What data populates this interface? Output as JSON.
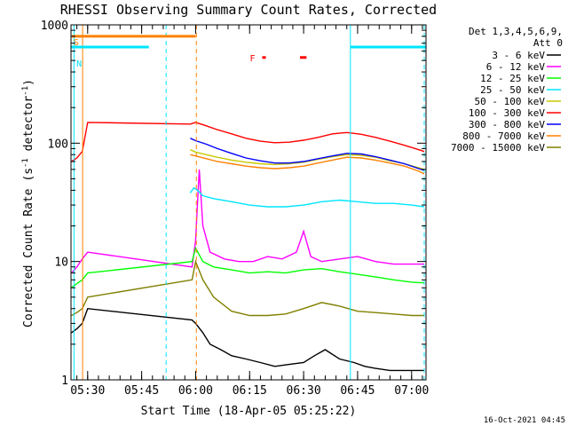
{
  "chart_data": {
    "type": "line",
    "title": "RHESSI Observing Summary Count Rates, Corrected",
    "xlabel": "Start Time (18-Apr-05 05:25:22)",
    "ylabel_main": "Corrected Count Rate (s",
    "ylabel_sup1": "-1",
    "ylabel_mid": " detector",
    "ylabel_sup2": "-1",
    "ylabel_end": ")",
    "y_scale": "log",
    "ylim": [
      1,
      1000
    ],
    "xlim_minutes": [
      325.37,
      424.0
    ],
    "x_ticks": [
      {
        "label": "05:30",
        "minutes": 330
      },
      {
        "label": "05:45",
        "minutes": 345
      },
      {
        "label": "06:00",
        "minutes": 360
      },
      {
        "label": "06:15",
        "minutes": 375
      },
      {
        "label": "06:30",
        "minutes": 390
      },
      {
        "label": "06:45",
        "minutes": 405
      },
      {
        "label": "07:00",
        "minutes": 420
      }
    ],
    "y_ticks": [
      {
        "label": "1",
        "value": 1
      },
      {
        "label": "10",
        "value": 10
      },
      {
        "label": "100",
        "value": 100
      },
      {
        "label": "1000",
        "value": 1000
      }
    ],
    "legend": {
      "title1": "Det 1,3,4,5,6,9,",
      "title2": "Att 0",
      "placement": "outside-right"
    },
    "series": [
      {
        "name": "3 - 6 keV",
        "color": "#000000",
        "x": [
          325.5,
          327,
          328.5,
          330,
          359,
          360,
          362,
          364,
          367,
          370,
          374,
          378,
          382,
          386,
          390,
          393,
          396,
          400,
          404,
          407,
          410,
          414,
          418,
          422,
          423.5
        ],
        "y": [
          2.5,
          2.7,
          3,
          4,
          3.2,
          3,
          2.5,
          2,
          1.8,
          1.6,
          1.5,
          1.4,
          1.3,
          1.35,
          1.4,
          1.6,
          1.8,
          1.5,
          1.4,
          1.3,
          1.25,
          1.2,
          1.2,
          1.2,
          1.2
        ]
      },
      {
        "name": "6 - 12 keV",
        "color": "#ff00ff",
        "x": [
          325.5,
          327,
          328.5,
          330,
          359,
          360,
          361,
          362,
          364,
          368,
          372,
          376,
          380,
          384,
          388,
          390,
          392,
          395,
          400,
          405,
          410,
          415,
          420,
          423.5
        ],
        "y": [
          8,
          9,
          10.5,
          12,
          9,
          15,
          60,
          20,
          12,
          10.5,
          10,
          10,
          11,
          10.5,
          12,
          18,
          11,
          10,
          10.5,
          11,
          10,
          9.5,
          9.5,
          9.5
        ]
      },
      {
        "name": "12 - 25 keV",
        "color": "#00ff00",
        "x": [
          325.5,
          327,
          328.5,
          330,
          359,
          360,
          362,
          365,
          370,
          375,
          380,
          385,
          390,
          395,
          400,
          405,
          410,
          415,
          420,
          423.5
        ],
        "y": [
          6,
          6.5,
          7,
          8,
          10,
          13,
          10,
          9,
          8.5,
          8,
          8.2,
          8,
          8.5,
          8.7,
          8.2,
          7.8,
          7.4,
          7,
          6.7,
          6.6
        ]
      },
      {
        "name": "25 - 50 keV",
        "color": "#00e5ff",
        "x": [
          358.5,
          359.5,
          360.5,
          362,
          365,
          370,
          375,
          380,
          385,
          390,
          395,
          400,
          405,
          410,
          415,
          420,
          423.5
        ],
        "y": [
          38,
          42,
          40,
          36,
          34,
          32,
          30,
          29,
          29,
          30,
          32,
          33,
          32,
          31,
          31,
          30,
          29
        ]
      },
      {
        "name": "50 - 100 keV",
        "color": "#c8c800",
        "x": [
          358.5,
          360,
          363,
          366,
          370,
          374,
          378,
          382,
          386,
          390,
          394,
          398,
          402,
          406,
          410,
          414,
          418,
          422,
          423.5
        ],
        "y": [
          88,
          84,
          80,
          76,
          72,
          69,
          67,
          66,
          67,
          69,
          73,
          77,
          80,
          79,
          76,
          71,
          67,
          62,
          60
        ]
      },
      {
        "name": "100 - 300 keV",
        "color": "#ff0000",
        "x": [
          325.5,
          327,
          328.5,
          330,
          358.5,
          360,
          363,
          366,
          370,
          374,
          378,
          382,
          386,
          390,
          394,
          398,
          402,
          406,
          410,
          414,
          418,
          422,
          423.5
        ],
        "y": [
          70,
          75,
          85,
          150,
          145,
          150,
          140,
          130,
          120,
          110,
          104,
          101,
          102,
          106,
          112,
          120,
          123,
          119,
          112,
          104,
          96,
          88,
          85
        ]
      },
      {
        "name": "300 - 800 keV",
        "color": "#0000ff",
        "x": [
          358.5,
          360,
          363,
          366,
          370,
          374,
          378,
          382,
          386,
          390,
          394,
          398,
          402,
          406,
          410,
          414,
          418,
          422,
          423.5
        ],
        "y": [
          110,
          105,
          98,
          90,
          82,
          75,
          71,
          68,
          68,
          70,
          74,
          78,
          82,
          81,
          77,
          72,
          67,
          61,
          59
        ]
      },
      {
        "name": "800 - 7000 keV",
        "color": "#ff8000",
        "x": [
          358.5,
          360,
          363,
          366,
          370,
          374,
          378,
          382,
          386,
          390,
          394,
          398,
          402,
          406,
          410,
          414,
          418,
          422,
          423.5
        ],
        "y": [
          80,
          78,
          74,
          70,
          67,
          64,
          62,
          61,
          62,
          64,
          68,
          72,
          76,
          75,
          72,
          68,
          64,
          58,
          55
        ]
      },
      {
        "name": "7000 - 15000 keV",
        "color": "#808000",
        "x": [
          325.5,
          327,
          328.5,
          330,
          359,
          360,
          362,
          365,
          370,
          375,
          380,
          385,
          390,
          395,
          400,
          405,
          410,
          415,
          420,
          423.5
        ],
        "y": [
          3.5,
          3.7,
          4,
          5,
          7,
          10,
          7,
          5,
          3.8,
          3.5,
          3.5,
          3.6,
          4,
          4.5,
          4.2,
          3.8,
          3.7,
          3.6,
          3.5,
          3.5
        ]
      }
    ],
    "annotations": {
      "segments": [
        {
          "label": "S",
          "color": "#ff8000",
          "x_start": 325.6,
          "x_end": 360.0,
          "y": 800
        },
        {
          "label": "N",
          "color": "#00e5ff",
          "x_start": 325.4,
          "x_end": 347.0,
          "y": 650
        },
        {
          "label": "N",
          "color": "#00e5ff",
          "x_start": 403.0,
          "x_end": 424.0,
          "y": 650
        }
      ],
      "flare_label": "F",
      "flare_color": "#ff0000",
      "flare_marks": [
        {
          "x_start": 378.5,
          "x_end": 379.5
        },
        {
          "x_start": 389.0,
          "x_end": 390.8
        }
      ],
      "flare_y": 530,
      "vertical_lines": [
        {
          "x": 326.2,
          "color": "#00e5ff",
          "dashed": false
        },
        {
          "x": 328.6,
          "color": "#ff8000",
          "dashed": false
        },
        {
          "x": 351.8,
          "color": "#00e5ff",
          "dashed": true
        },
        {
          "x": 360.2,
          "color": "#ff8000",
          "dashed": true
        },
        {
          "x": 403.0,
          "color": "#00e5ff",
          "dashed": false
        },
        {
          "x": 423.5,
          "color": "#00e5ff",
          "dashed": true
        }
      ]
    }
  },
  "footer_timestamp": "16-Oct-2021 04:45"
}
